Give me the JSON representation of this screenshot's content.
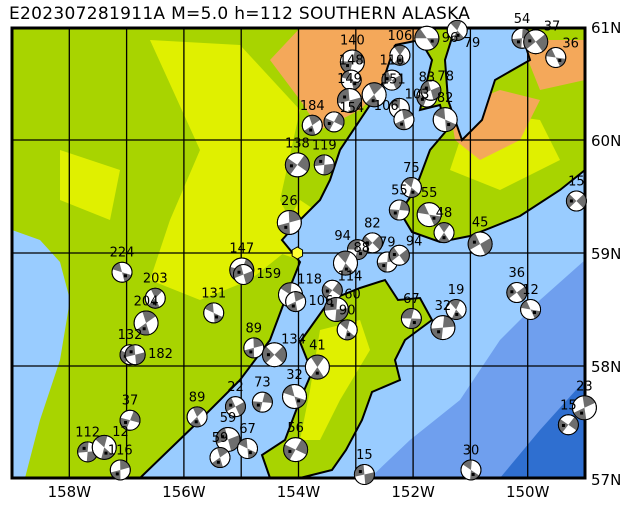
{
  "title": "E202307281911A  M=5.0  h=112  SOUTHERN  ALASKA",
  "map": {
    "lon_range": [
      -159,
      -149
    ],
    "lat_range": [
      57,
      61
    ],
    "lon_labels": [
      {
        "lon": -158,
        "text": "158W"
      },
      {
        "lon": -156,
        "text": "156W"
      },
      {
        "lon": -154,
        "text": "154W"
      },
      {
        "lon": -152,
        "text": "152W"
      },
      {
        "lon": -150,
        "text": "150W"
      }
    ],
    "lat_labels": [
      {
        "lat": 61,
        "text": "61N"
      },
      {
        "lat": 60,
        "text": "60N"
      },
      {
        "lat": 59,
        "text": "59N"
      },
      {
        "lat": 58,
        "text": "58N"
      },
      {
        "lat": 57,
        "text": "57N"
      }
    ],
    "grid_lon_step": 1,
    "grid_lat_step": 1,
    "colors": {
      "land_low": "#a8d400",
      "land_mid": "#e0f000",
      "mountain": "#f4a85a",
      "shallow_water": "#99ccff",
      "mid_water": "#6f9fee",
      "deep_water": "#2f6fd0",
      "mechanism_fill": "#6e6e6e",
      "epicenter": "#ffff33"
    },
    "main_event": {
      "lon": -154.02,
      "lat": 59.0,
      "icon": "hexagon-epicenter-icon"
    }
  },
  "events": [
    {
      "lon": -151.76,
      "lat": 60.9,
      "depth": "96"
    },
    {
      "lon": -151.23,
      "lat": 60.97,
      "depth": "79"
    },
    {
      "lon": -150.1,
      "lat": 60.9,
      "depth": "54"
    },
    {
      "lon": -149.86,
      "lat": 60.87,
      "depth": "37"
    },
    {
      "lon": -149.51,
      "lat": 60.73,
      "depth": "36"
    },
    {
      "lon": -152.23,
      "lat": 60.75,
      "depth": "106"
    },
    {
      "lon": -153.06,
      "lat": 60.69,
      "depth": "140"
    },
    {
      "lon": -152.37,
      "lat": 60.53,
      "depth": "110"
    },
    {
      "lon": -153.08,
      "lat": 60.53,
      "depth": "148"
    },
    {
      "lon": -152.68,
      "lat": 60.4,
      "depth": "151"
    },
    {
      "lon": -151.76,
      "lat": 60.38,
      "depth": "83"
    },
    {
      "lon": -151.69,
      "lat": 60.44,
      "depth": "78"
    },
    {
      "lon": -151.44,
      "lat": 60.18,
      "depth": "82"
    },
    {
      "lon": -153.76,
      "lat": 60.13,
      "depth": "184"
    },
    {
      "lon": -153.38,
      "lat": 60.16,
      "depth": "154"
    },
    {
      "lon": -153.11,
      "lat": 60.35,
      "depth": "149"
    },
    {
      "lon": -152.24,
      "lat": 60.28,
      "depth": "103"
    },
    {
      "lon": -152.16,
      "lat": 60.18,
      "depth": "106"
    },
    {
      "lon": -154.02,
      "lat": 59.78,
      "depth": "138"
    },
    {
      "lon": -153.55,
      "lat": 59.78,
      "depth": "119"
    },
    {
      "lon": -152.03,
      "lat": 59.58,
      "depth": "75"
    },
    {
      "lon": -154.16,
      "lat": 59.27,
      "depth": "26"
    },
    {
      "lon": -152.71,
      "lat": 59.09,
      "depth": "82"
    },
    {
      "lon": -152.97,
      "lat": 59.03,
      "depth": "94"
    },
    {
      "lon": -153.18,
      "lat": 58.91,
      "depth": "88"
    },
    {
      "lon": -152.45,
      "lat": 58.92,
      "depth": "79"
    },
    {
      "lon": -152.24,
      "lat": 58.98,
      "depth": "94"
    },
    {
      "lon": -151.72,
      "lat": 59.34,
      "depth": "55"
    },
    {
      "lon": -151.46,
      "lat": 59.18,
      "depth": "48"
    },
    {
      "lon": -152.24,
      "lat": 59.38,
      "depth": "55"
    },
    {
      "lon": -150.83,
      "lat": 59.08,
      "depth": "45"
    },
    {
      "lon": -157.08,
      "lat": 58.83,
      "depth": "224"
    },
    {
      "lon": -156.5,
      "lat": 58.6,
      "depth": "203"
    },
    {
      "lon": -154.99,
      "lat": 58.85,
      "depth": "147"
    },
    {
      "lon": -154.96,
      "lat": 58.81,
      "depth": "159"
    },
    {
      "lon": -155.48,
      "lat": 58.47,
      "depth": "131"
    },
    {
      "lon": -156.66,
      "lat": 58.38,
      "depth": "204"
    },
    {
      "lon": -156.94,
      "lat": 58.1,
      "depth": "132"
    },
    {
      "lon": -156.85,
      "lat": 58.1,
      "depth": "182"
    },
    {
      "lon": -154.14,
      "lat": 58.63,
      "depth": "118"
    },
    {
      "lon": -154.05,
      "lat": 58.57,
      "depth": "106"
    },
    {
      "lon": -153.41,
      "lat": 58.67,
      "depth": "114"
    },
    {
      "lon": -153.34,
      "lat": 58.5,
      "depth": "60"
    },
    {
      "lon": -153.15,
      "lat": 58.32,
      "depth": "90"
    },
    {
      "lon": -154.78,
      "lat": 58.16,
      "depth": "89"
    },
    {
      "lon": -154.42,
      "lat": 58.1,
      "depth": "134"
    },
    {
      "lon": -152.03,
      "lat": 58.42,
      "depth": "67"
    },
    {
      "lon": -151.25,
      "lat": 58.5,
      "depth": "19"
    },
    {
      "lon": -151.48,
      "lat": 58.34,
      "depth": "32"
    },
    {
      "lon": -150.19,
      "lat": 58.65,
      "depth": "36"
    },
    {
      "lon": -149.95,
      "lat": 58.5,
      "depth": "12"
    },
    {
      "lon": -153.67,
      "lat": 57.99,
      "depth": "41"
    },
    {
      "lon": -154.63,
      "lat": 57.68,
      "depth": "73"
    },
    {
      "lon": -155.1,
      "lat": 57.64,
      "depth": "22"
    },
    {
      "lon": -154.07,
      "lat": 57.73,
      "depth": "32"
    },
    {
      "lon": -155.77,
      "lat": 57.55,
      "depth": "89"
    },
    {
      "lon": -156.94,
      "lat": 57.52,
      "depth": "37"
    },
    {
      "lon": -155.23,
      "lat": 57.35,
      "depth": "59"
    },
    {
      "lon": -154.89,
      "lat": 57.27,
      "depth": "67"
    },
    {
      "lon": -155.37,
      "lat": 57.19,
      "depth": "59"
    },
    {
      "lon": -154.05,
      "lat": 57.26,
      "depth": "56"
    },
    {
      "lon": -152.85,
      "lat": 57.04,
      "depth": "15"
    },
    {
      "lon": -150.99,
      "lat": 57.08,
      "depth": "30"
    },
    {
      "lon": -149.01,
      "lat": 57.63,
      "depth": "23"
    },
    {
      "lon": -149.29,
      "lat": 57.48,
      "depth": "15"
    },
    {
      "lon": -157.68,
      "lat": 57.24,
      "depth": "112"
    },
    {
      "lon": -157.39,
      "lat": 57.28,
      "depth": "12"
    },
    {
      "lon": -157.11,
      "lat": 57.08,
      "depth": "116"
    },
    {
      "lon": -149.15,
      "lat": 59.46,
      "depth": "15"
    }
  ]
}
